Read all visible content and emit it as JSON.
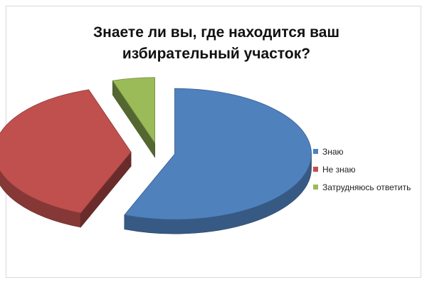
{
  "chart_data": {
    "type": "pie",
    "title_lines": [
      "Знаете ли вы, где находится ваш",
      "избирательный участок?"
    ],
    "categories": [
      "Знаю",
      "Не знаю",
      "Затрудняюсь ответить"
    ],
    "values": [
      56,
      39,
      5
    ],
    "unit": "%",
    "colors": [
      "#4f81bd",
      "#c0504d",
      "#9bbb59"
    ],
    "exploded": true,
    "style": "3d",
    "legend": "right"
  }
}
